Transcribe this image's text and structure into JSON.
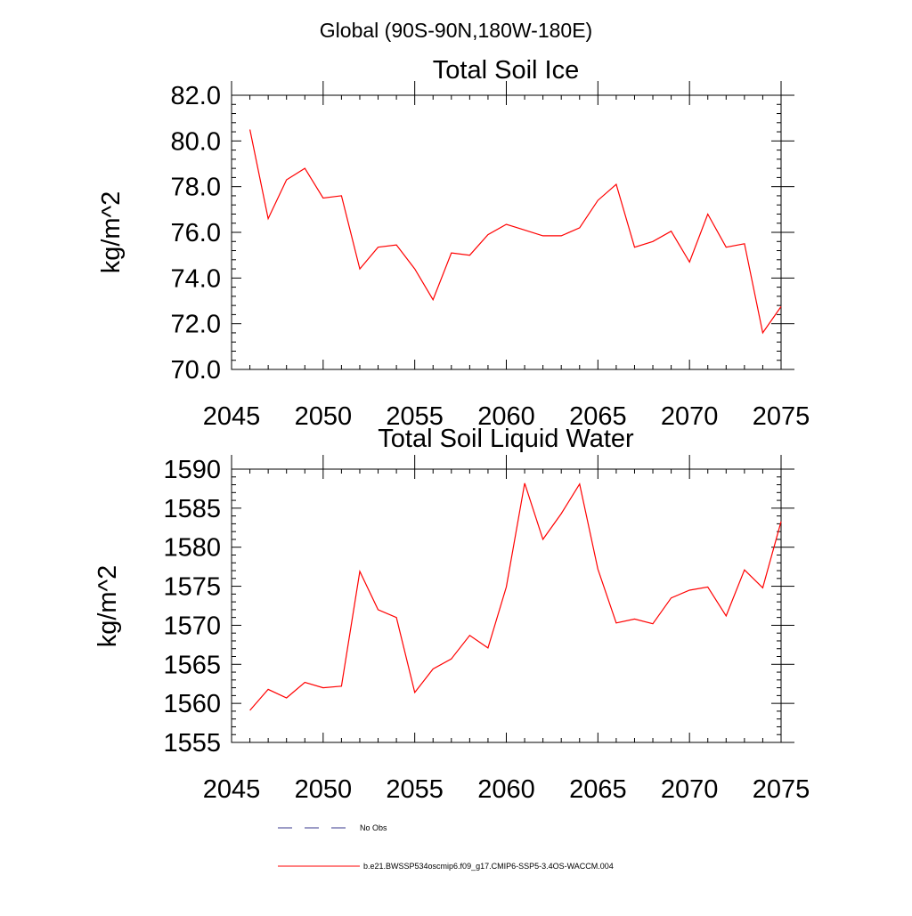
{
  "header": {
    "title": "Global (90S-90N,180W-180E)"
  },
  "chart_data": [
    {
      "type": "line",
      "title": "Total Soil Ice",
      "xlabel": "",
      "ylabel": "kg/m^2",
      "xlim": [
        2045,
        2075
      ],
      "ylim": [
        70.0,
        82.0
      ],
      "xticks": [
        2045,
        2050,
        2055,
        2060,
        2065,
        2070,
        2075
      ],
      "xtick_labels": [
        "2045",
        "2050",
        "2055",
        "2060",
        "2065",
        "2070",
        "2075"
      ],
      "yticks": [
        70.0,
        72.0,
        74.0,
        76.0,
        78.0,
        80.0,
        82.0
      ],
      "ytick_labels": [
        "70.0",
        "72.0",
        "74.0",
        "76.0",
        "78.0",
        "80.0",
        "82.0"
      ],
      "grid": false,
      "x": [
        2046,
        2047,
        2048,
        2049,
        2050,
        2051,
        2052,
        2053,
        2054,
        2055,
        2056,
        2057,
        2058,
        2059,
        2060,
        2061,
        2062,
        2063,
        2064,
        2065,
        2066,
        2067,
        2068,
        2069,
        2070,
        2071,
        2072,
        2073,
        2074,
        2075
      ],
      "series": [
        {
          "name": "b.e21.BWSSP534oscmip6.f09_g17.CMIP6-SSP5-3.4OS-WACCM.004",
          "color": "#ff0000",
          "values": [
            80.5,
            76.6,
            78.3,
            78.8,
            77.5,
            77.6,
            74.4,
            75.35,
            75.45,
            74.4,
            73.05,
            75.1,
            75.0,
            75.9,
            76.35,
            76.1,
            75.85,
            75.85,
            76.2,
            77.4,
            78.1,
            75.35,
            75.6,
            76.05,
            74.7,
            76.8,
            75.35,
            75.5,
            71.6,
            72.75
          ]
        }
      ]
    },
    {
      "type": "line",
      "title": "Total Soil Liquid Water",
      "xlabel": "",
      "ylabel": "kg/m^2",
      "xlim": [
        2045,
        2075
      ],
      "ylim": [
        1555,
        1590
      ],
      "xticks": [
        2045,
        2050,
        2055,
        2060,
        2065,
        2070,
        2075
      ],
      "xtick_labels": [
        "2045",
        "2050",
        "2055",
        "2060",
        "2065",
        "2070",
        "2075"
      ],
      "yticks": [
        1555,
        1560,
        1565,
        1570,
        1575,
        1580,
        1585,
        1590
      ],
      "ytick_labels": [
        "1555",
        "1560",
        "1565",
        "1570",
        "1575",
        "1580",
        "1585",
        "1590"
      ],
      "grid": false,
      "x": [
        2046,
        2047,
        2048,
        2049,
        2050,
        2051,
        2052,
        2053,
        2054,
        2055,
        2056,
        2057,
        2058,
        2059,
        2060,
        2061,
        2062,
        2063,
        2064,
        2065,
        2066,
        2067,
        2068,
        2069,
        2070,
        2071,
        2072,
        2073,
        2074,
        2075
      ],
      "series": [
        {
          "name": "b.e21.BWSSP534oscmip6.f09_g17.CMIP6-SSP5-3.4OS-WACCM.004",
          "color": "#ff0000",
          "values": [
            1559.1,
            1561.8,
            1560.7,
            1562.7,
            1562.0,
            1562.2,
            1576.9,
            1572.0,
            1571.0,
            1561.4,
            1564.4,
            1565.7,
            1568.7,
            1567.1,
            1574.9,
            1588.2,
            1581.0,
            1584.3,
            1588.1,
            1577.2,
            1570.3,
            1570.8,
            1570.2,
            1573.5,
            1574.5,
            1574.9,
            1571.2,
            1577.1,
            1574.8,
            1583.3
          ]
        }
      ]
    }
  ],
  "legend": {
    "position": "bottom-center",
    "entries": [
      {
        "label": "No Obs",
        "color": "#3a3a8c",
        "style": "dashed"
      },
      {
        "label": "b.e21.BWSSP534oscmip6.f09_g17.CMIP6-SSP5-3.4OS-WACCM.004",
        "color": "#ff0000",
        "style": "solid"
      }
    ]
  }
}
